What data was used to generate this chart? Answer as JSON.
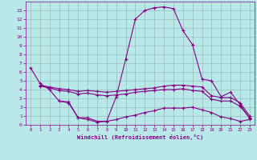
{
  "xlabel": "Windchill (Refroidissement éolien,°C)",
  "bg_color": "#b8e8e8",
  "grid_color": "#99bbbb",
  "line_color": "#880088",
  "x_all": [
    0,
    1,
    2,
    3,
    4,
    5,
    6,
    7,
    8,
    9,
    10,
    11,
    12,
    13,
    14,
    15,
    16,
    17,
    18,
    19,
    20,
    21,
    22,
    23
  ],
  "series1": [
    6.5,
    4.7,
    4.0,
    2.7,
    2.6,
    0.8,
    0.6,
    0.3,
    0.4,
    3.2,
    7.5,
    12.0,
    13.0,
    13.3,
    13.4,
    13.2,
    10.7,
    9.1,
    5.2,
    5.0,
    3.2,
    3.7,
    2.3,
    0.7
  ],
  "series2": [
    null,
    4.5,
    4.3,
    4.1,
    4.0,
    3.8,
    3.9,
    3.8,
    3.7,
    3.8,
    3.9,
    4.0,
    4.1,
    4.2,
    4.4,
    4.5,
    4.5,
    4.4,
    4.3,
    3.3,
    3.1,
    3.1,
    2.5,
    1.0
  ],
  "series3": [
    null,
    4.4,
    4.2,
    3.9,
    3.8,
    3.5,
    3.6,
    3.4,
    3.3,
    3.4,
    3.5,
    3.7,
    3.8,
    3.9,
    4.0,
    4.0,
    4.1,
    3.9,
    3.8,
    2.9,
    2.7,
    2.7,
    2.1,
    0.8
  ],
  "series4": [
    null,
    null,
    null,
    2.7,
    2.5,
    0.8,
    0.8,
    0.4,
    0.4,
    0.6,
    0.9,
    1.1,
    1.4,
    1.6,
    1.9,
    1.9,
    1.9,
    2.0,
    1.7,
    1.4,
    0.9,
    0.7,
    0.4,
    0.6
  ],
  "ylim": [
    0,
    14
  ],
  "xlim": [
    -0.5,
    23.5
  ],
  "yticks": [
    0,
    1,
    2,
    3,
    4,
    5,
    6,
    7,
    8,
    9,
    10,
    11,
    12,
    13
  ],
  "xticks": [
    0,
    1,
    2,
    3,
    4,
    5,
    6,
    7,
    8,
    9,
    10,
    11,
    12,
    13,
    14,
    15,
    16,
    17,
    18,
    19,
    20,
    21,
    22,
    23
  ]
}
